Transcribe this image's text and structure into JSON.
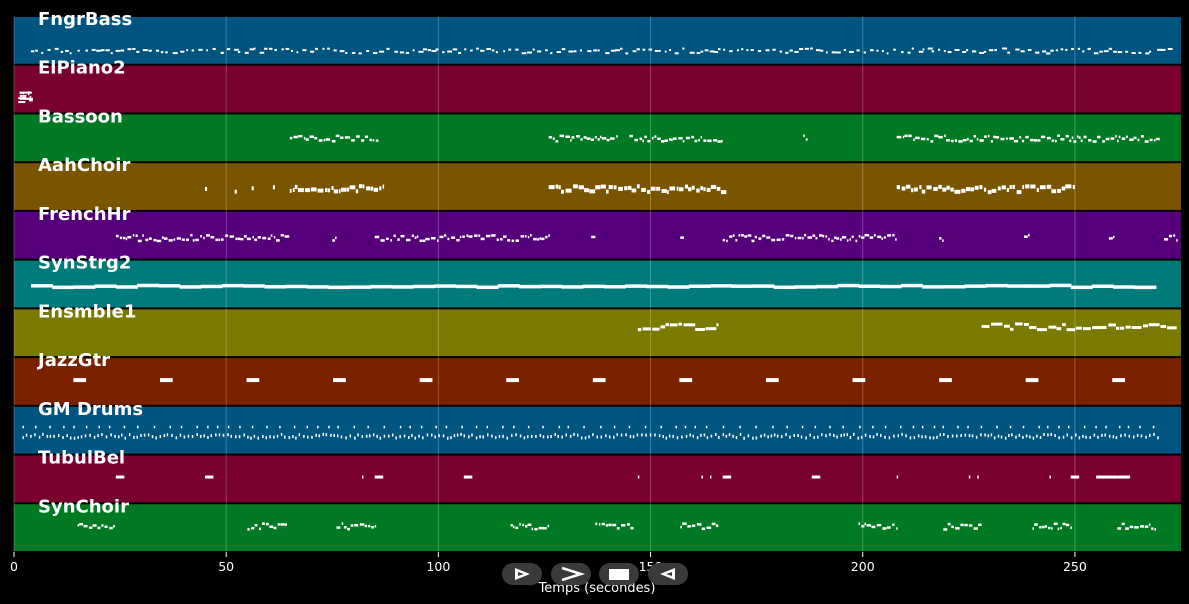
{
  "chart_data": {
    "type": "piano-roll",
    "xlabel": "Temps (secondes)",
    "xlim": [
      0,
      275
    ],
    "xticks": [
      0,
      50,
      100,
      150,
      200,
      250
    ],
    "grid": true,
    "tracks": [
      {
        "name": "FngrBass",
        "color": "#005580",
        "pattern": "dense-sparkle"
      },
      {
        "name": "ElPiano2",
        "color": "#7a0030",
        "pattern": "intro-block"
      },
      {
        "name": "Bassoon",
        "color": "#007a22",
        "pattern": "phrases"
      },
      {
        "name": "AahChoir",
        "color": "#7a5500",
        "pattern": "phrases-thick"
      },
      {
        "name": "FrenchHr",
        "color": "#55007a",
        "pattern": "long-phrases"
      },
      {
        "name": "SynStrg2",
        "color": "#007a7a",
        "pattern": "sustain"
      },
      {
        "name": "Ensmble1",
        "color": "#7a7a00",
        "pattern": "late"
      },
      {
        "name": "JazzGtr",
        "color": "#7a2200",
        "pattern": "periodic"
      },
      {
        "name": "GM Drums",
        "color": "#005580",
        "pattern": "drums"
      },
      {
        "name": "TubulBel",
        "color": "#7a0030",
        "pattern": "sparse"
      },
      {
        "name": "SynChoir",
        "color": "#007a22",
        "pattern": "clusters"
      }
    ]
  },
  "controls": [
    {
      "name": "play-forward-button",
      "icon": "play-outline-icon"
    },
    {
      "name": "next-button",
      "icon": "chevron-right-icon"
    },
    {
      "name": "stop-button",
      "icon": "stop-icon"
    },
    {
      "name": "play-reverse-button",
      "icon": "play-reverse-outline-icon"
    }
  ]
}
